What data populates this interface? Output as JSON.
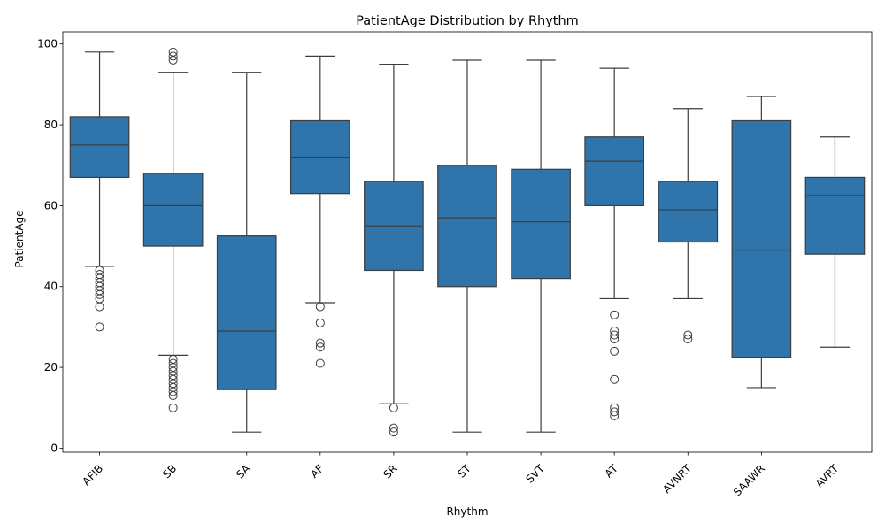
{
  "chart_data": {
    "type": "box",
    "title": "PatientAge Distribution by Rhythm",
    "xlabel": "Rhythm",
    "ylabel": "PatientAge",
    "ylim": [
      -1,
      103
    ],
    "yticks": [
      0,
      20,
      40,
      60,
      80,
      100
    ],
    "color": "#2f74ab",
    "categories": [
      "AFIB",
      "SB",
      "SA",
      "AF",
      "SR",
      "ST",
      "SVT",
      "AT",
      "AVNRT",
      "SAAWR",
      "AVRT"
    ],
    "boxes": [
      {
        "category": "AFIB",
        "whisker_low": 45,
        "q1": 67,
        "median": 75,
        "q3": 82,
        "whisker_high": 98,
        "outliers": [
          44,
          43,
          42,
          41,
          40,
          39,
          38,
          37,
          35,
          30
        ]
      },
      {
        "category": "SB",
        "whisker_low": 23,
        "q1": 50,
        "median": 60,
        "q3": 68,
        "whisker_high": 93,
        "outliers": [
          98,
          97,
          96,
          22,
          21,
          20,
          19,
          18,
          17,
          16,
          15,
          14,
          13,
          10
        ]
      },
      {
        "category": "SA",
        "whisker_low": 4,
        "q1": 14.5,
        "median": 29,
        "q3": 52.5,
        "whisker_high": 93,
        "outliers": []
      },
      {
        "category": "AF",
        "whisker_low": 36,
        "q1": 63,
        "median": 72,
        "q3": 81,
        "whisker_high": 97,
        "outliers": [
          35,
          31,
          26,
          25,
          21
        ]
      },
      {
        "category": "SR",
        "whisker_low": 11,
        "q1": 44,
        "median": 55,
        "q3": 66,
        "whisker_high": 95,
        "outliers": [
          10,
          5,
          4
        ]
      },
      {
        "category": "ST",
        "whisker_low": 4,
        "q1": 40,
        "median": 57,
        "q3": 70,
        "whisker_high": 96,
        "outliers": []
      },
      {
        "category": "SVT",
        "whisker_low": 4,
        "q1": 42,
        "median": 56,
        "q3": 69,
        "whisker_high": 96,
        "outliers": []
      },
      {
        "category": "AT",
        "whisker_low": 37,
        "q1": 60,
        "median": 71,
        "q3": 77,
        "whisker_high": 94,
        "outliers": [
          33,
          29,
          28,
          27,
          24,
          17,
          10,
          9,
          8
        ]
      },
      {
        "category": "AVNRT",
        "whisker_low": 37,
        "q1": 51,
        "median": 59,
        "q3": 66,
        "whisker_high": 84,
        "outliers": [
          28,
          27
        ]
      },
      {
        "category": "SAAWR",
        "whisker_low": 15,
        "q1": 22.5,
        "median": 49,
        "q3": 81,
        "whisker_high": 87,
        "outliers": []
      },
      {
        "category": "AVRT",
        "whisker_low": 25,
        "q1": 48,
        "median": 62.5,
        "q3": 67,
        "whisker_high": 77,
        "outliers": []
      }
    ]
  }
}
